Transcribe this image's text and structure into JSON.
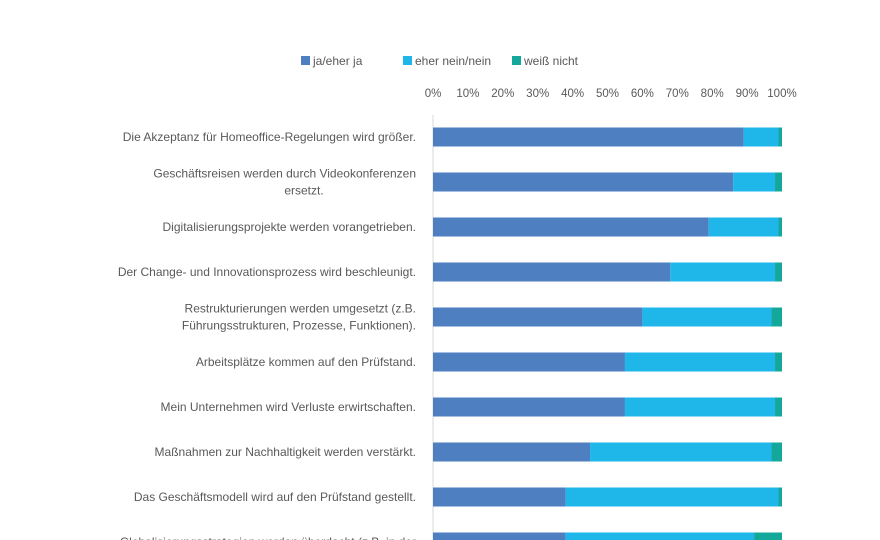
{
  "chart_data": {
    "type": "bar",
    "orientation": "horizontal",
    "stacked": "percent",
    "legend_position": "top",
    "grid": false,
    "xlim": [
      0,
      100
    ],
    "x_ticks": [
      "0%",
      "10%",
      "20%",
      "30%",
      "40%",
      "50%",
      "60%",
      "70%",
      "80%",
      "90%",
      "100%"
    ],
    "categories": [
      "Die Akzeptanz für Homeoffice-Regelungen wird größer.",
      "Geschäftsreisen werden durch Videokonferenzen ersetzt.",
      "Digitalisierungsprojekte werden vorangetrieben.",
      "Der Change- und Innovationsprozess wird beschleunigt.",
      "Restrukturierungen werden umgesetzt (z.B. Führungsstrukturen, Prozesse, Funktionen).",
      "Arbeitsplätze kommen auf den Prüfstand.",
      "Mein Unternehmen wird Verluste erwirtschaften.",
      "Maßnahmen zur Nachhaltigkeit werden verstärkt.",
      "Das Geschäftsmodell wird auf den Prüfstand gestellt.",
      "Globalisierungsstrategien werden überdacht (z.B. in der"
    ],
    "category_lines": [
      [
        "Die Akzeptanz für Homeoffice-Regelungen wird größer."
      ],
      [
        "Geschäftsreisen werden durch Videokonferenzen",
        "ersetzt."
      ],
      [
        "Digitalisierungsprojekte werden vorangetrieben."
      ],
      [
        "Der Change- und Innovationsprozess wird beschleunigt."
      ],
      [
        "Restrukturierungen werden umgesetzt (z.B.",
        "Führungsstrukturen, Prozesse, Funktionen)."
      ],
      [
        "Arbeitsplätze kommen auf den Prüfstand."
      ],
      [
        "Mein Unternehmen wird Verluste erwirtschaften."
      ],
      [
        "Maßnahmen zur Nachhaltigkeit werden verstärkt."
      ],
      [
        "Das Geschäftsmodell wird auf den Prüfstand gestellt."
      ],
      [
        "Globalisierungsstrategien werden überdacht (z.B. in der"
      ]
    ],
    "series": [
      {
        "name": "ja/eher ja",
        "color": "#4E7FC1",
        "values": [
          89,
          86,
          79,
          68,
          60,
          55,
          55,
          45,
          38,
          38
        ]
      },
      {
        "name": "eher nein/nein",
        "color": "#1FB6EA",
        "values": [
          10,
          12,
          20,
          30,
          37,
          43,
          43,
          52,
          61,
          54
        ]
      },
      {
        "name": "weiß nicht",
        "color": "#14A89A",
        "values": [
          1,
          2,
          1,
          2,
          3,
          2,
          2,
          3,
          1,
          8
        ]
      }
    ]
  }
}
